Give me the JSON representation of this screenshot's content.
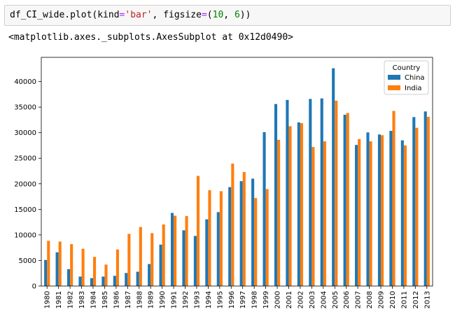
{
  "code_cell": {
    "prefix": "df_CI_wide.plot(kind",
    "op": "=",
    "kind_value": "'bar'",
    "mid": ", figsize",
    "op2": "=",
    "lparen": "(",
    "num1": "10",
    "comma": ", ",
    "num2": "6",
    "suffix": "))"
  },
  "output_text": "<matplotlib.axes._subplots.AxesSubplot at 0x12d0490>",
  "chart_data": {
    "type": "bar",
    "categories": [
      "1980",
      "1981",
      "1982",
      "1983",
      "1984",
      "1985",
      "1986",
      "1987",
      "1988",
      "1989",
      "1990",
      "1991",
      "1992",
      "1993",
      "1994",
      "1995",
      "1996",
      "1997",
      "1998",
      "1999",
      "2000",
      "2001",
      "2002",
      "2003",
      "2004",
      "2005",
      "2006",
      "2007",
      "2008",
      "2009",
      "2010",
      "2011",
      "2012",
      "2013"
    ],
    "series": [
      {
        "name": "China",
        "color": "#1f77b4",
        "values": [
          5100,
          6600,
          3300,
          1850,
          1550,
          1850,
          2000,
          2550,
          2800,
          4300,
          8100,
          14300,
          10900,
          9800,
          13050,
          14450,
          19350,
          20500,
          21000,
          30100,
          35600,
          36400,
          32000,
          36600,
          36700,
          42600,
          33500,
          27600,
          30050,
          29650,
          30350,
          28500,
          33050,
          34150
        ]
      },
      {
        "name": "India",
        "color": "#ff7f0e",
        "values": [
          8850,
          8700,
          8200,
          7300,
          5700,
          4200,
          7150,
          10200,
          11550,
          10350,
          12050,
          13750,
          13700,
          21550,
          18750,
          18550,
          23950,
          22300,
          17200,
          18950,
          28600,
          31250,
          31850,
          27200,
          28300,
          36250,
          33850,
          28750,
          28300,
          29500,
          34250,
          27500,
          30950,
          33100
        ]
      }
    ],
    "yticks": [
      0,
      5000,
      10000,
      15000,
      20000,
      25000,
      30000,
      35000,
      40000
    ],
    "ylim": [
      0,
      44730
    ],
    "legend": {
      "title": "Country",
      "placement": "top-right"
    },
    "grid": false,
    "xlabel": "",
    "ylabel": ""
  }
}
